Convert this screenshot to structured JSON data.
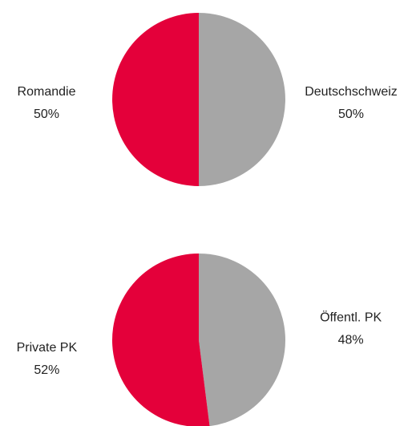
{
  "chart_data": [
    {
      "type": "pie",
      "categories": [
        "Deutschschweiz",
        "Romandie"
      ],
      "values": [
        50,
        50
      ],
      "value_labels": [
        "50%",
        "50%"
      ],
      "colors": [
        "#a6a6a6",
        "#e4003a"
      ]
    },
    {
      "type": "pie",
      "categories": [
        "Öffentl. PK",
        "Private PK"
      ],
      "values": [
        48,
        52
      ],
      "value_labels": [
        "48%",
        "52%"
      ],
      "colors": [
        "#a6a6a6",
        "#e4003a"
      ]
    }
  ]
}
